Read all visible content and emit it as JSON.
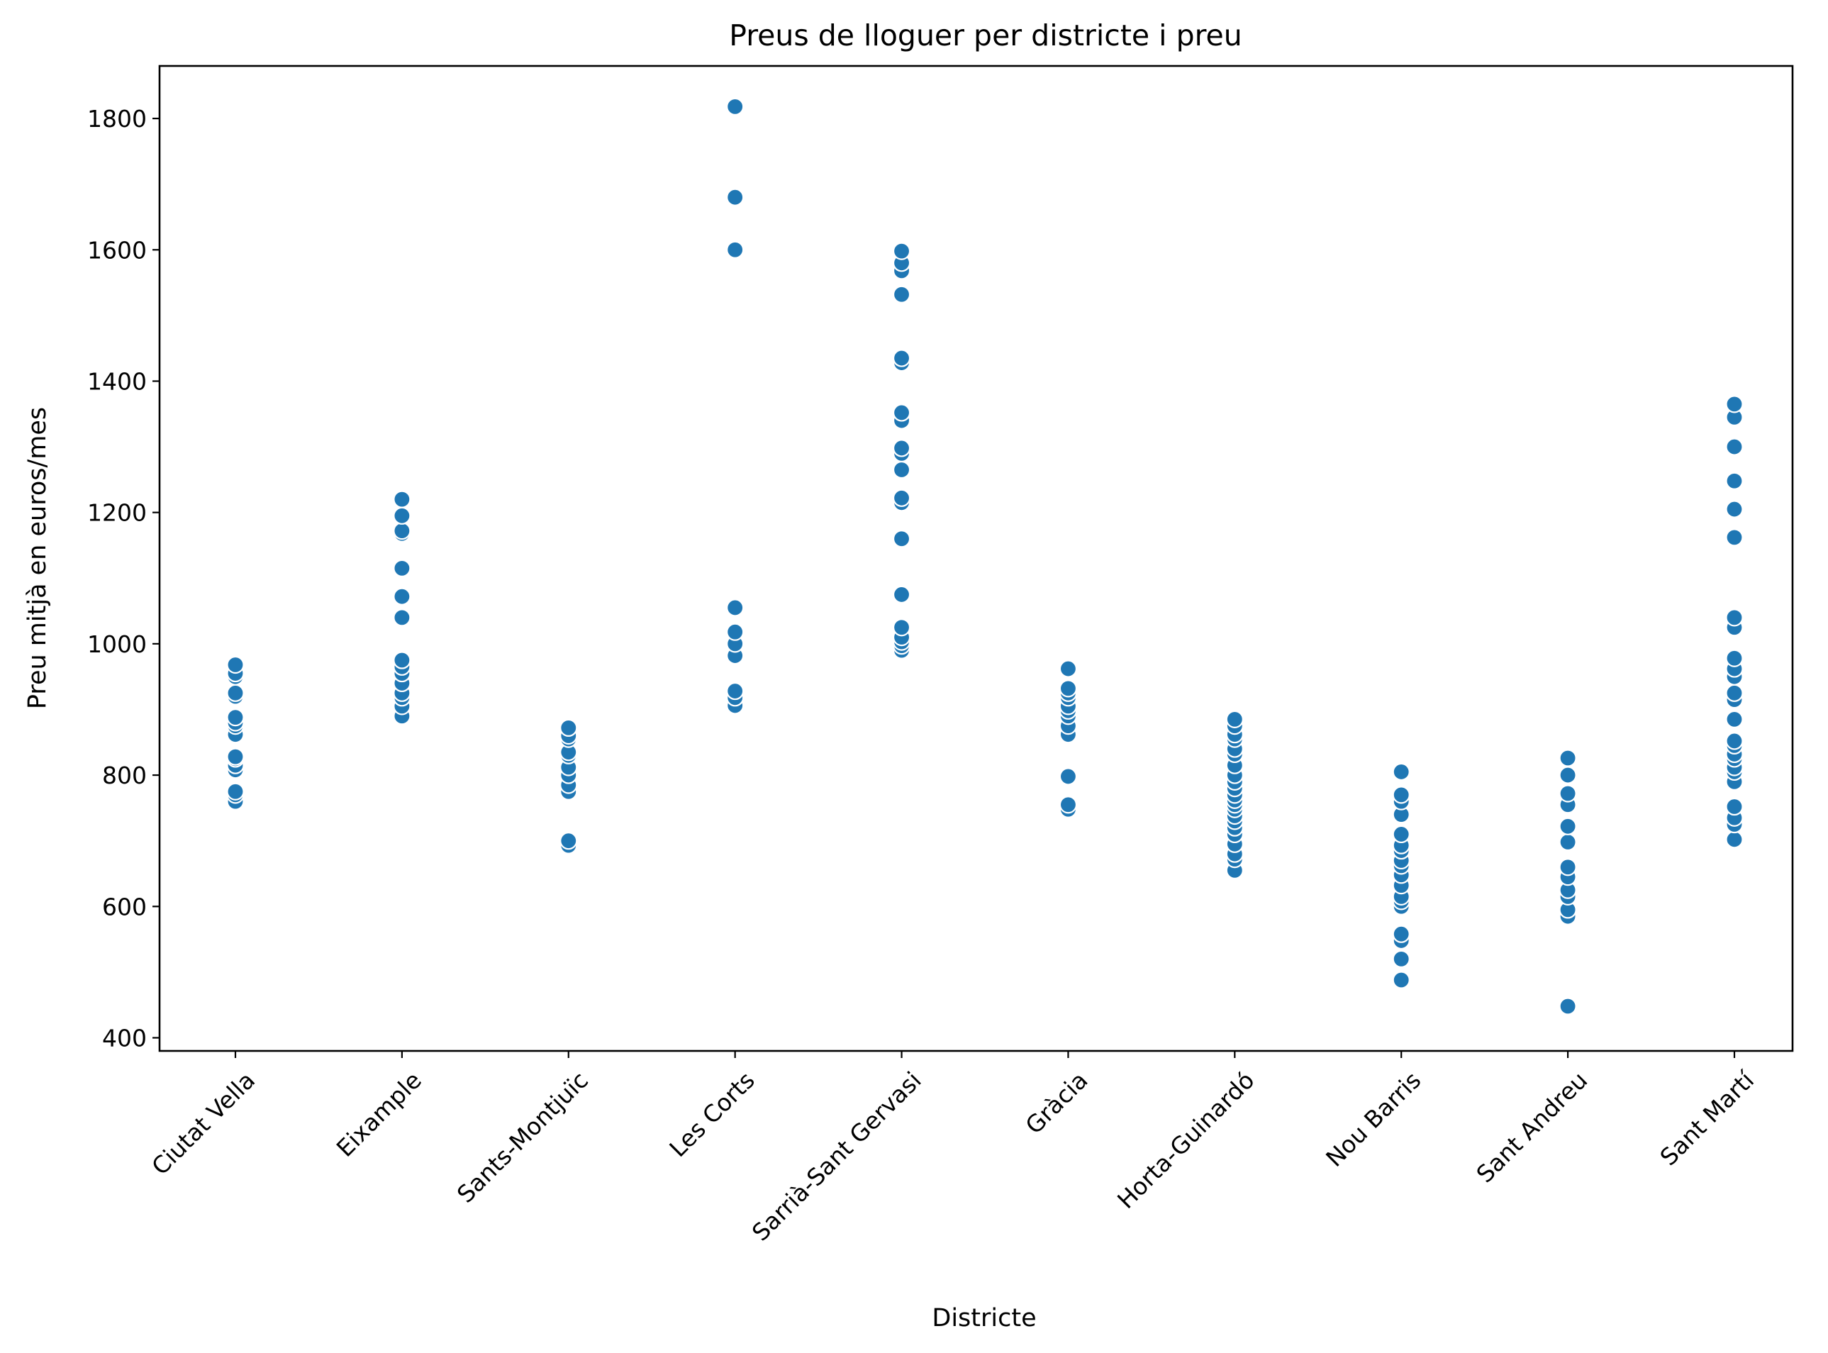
{
  "chart_data": {
    "type": "scatter",
    "title": "Preus de lloguer per districte i preu",
    "xlabel": "Districte",
    "ylabel": "Preu mitjà en euros/mes",
    "categories": [
      "Ciutat Vella",
      "Eixample",
      "Sants-Montjuïc",
      "Les Corts",
      "Sarrià-Sant Gervasi",
      "Gràcia",
      "Horta-Guinardó",
      "Nou Barris",
      "Sant Andreu",
      "Sant Martí"
    ],
    "ylim": [
      380,
      1880
    ],
    "yticks": [
      400,
      600,
      800,
      1000,
      1200,
      1400,
      1600,
      1800
    ],
    "ytick_labels": [
      "400",
      "600",
      "800",
      "1000",
      "1200",
      "1400",
      "1600",
      "1800"
    ],
    "grid": false,
    "marker_color": "#1f77b4",
    "series": [
      {
        "values": [
          [
            760,
            770,
            775,
            808,
            815,
            825,
            828,
            862,
            875,
            880,
            888,
            920,
            925,
            950,
            955,
            968
          ],
          [
            890,
            905,
            918,
            925,
            940,
            955,
            965,
            975,
            1040,
            1072,
            1115,
            1168,
            1172,
            1195,
            1220
          ],
          [
            693,
            700,
            775,
            785,
            800,
            812,
            830,
            835,
            855,
            860,
            872
          ],
          [
            906,
            918,
            928,
            982,
            1000,
            1018,
            1055,
            1600,
            1680,
            1818
          ],
          [
            990,
            997,
            1003,
            1010,
            1025,
            1075,
            1160,
            1215,
            1222,
            1265,
            1290,
            1298,
            1340,
            1352,
            1428,
            1435,
            1532,
            1568,
            1580,
            1598
          ],
          [
            748,
            755,
            798,
            862,
            875,
            890,
            898,
            905,
            918,
            925,
            932,
            962
          ],
          [
            655,
            672,
            680,
            695,
            710,
            720,
            730,
            738,
            748,
            755,
            762,
            770,
            780,
            790,
            800,
            815,
            832,
            840,
            855,
            862,
            875,
            885
          ],
          [
            488,
            520,
            548,
            558,
            600,
            608,
            615,
            632,
            648,
            662,
            670,
            685,
            693,
            710,
            740,
            760,
            770,
            805
          ],
          [
            448,
            585,
            595,
            615,
            625,
            645,
            660,
            698,
            722,
            755,
            772,
            800,
            826
          ],
          [
            702,
            725,
            735,
            752,
            790,
            805,
            812,
            825,
            832,
            845,
            852,
            885,
            915,
            925,
            950,
            962,
            978,
            1025,
            1040,
            1162,
            1205,
            1248,
            1300,
            1345,
            1365
          ]
        ]
      }
    ]
  }
}
